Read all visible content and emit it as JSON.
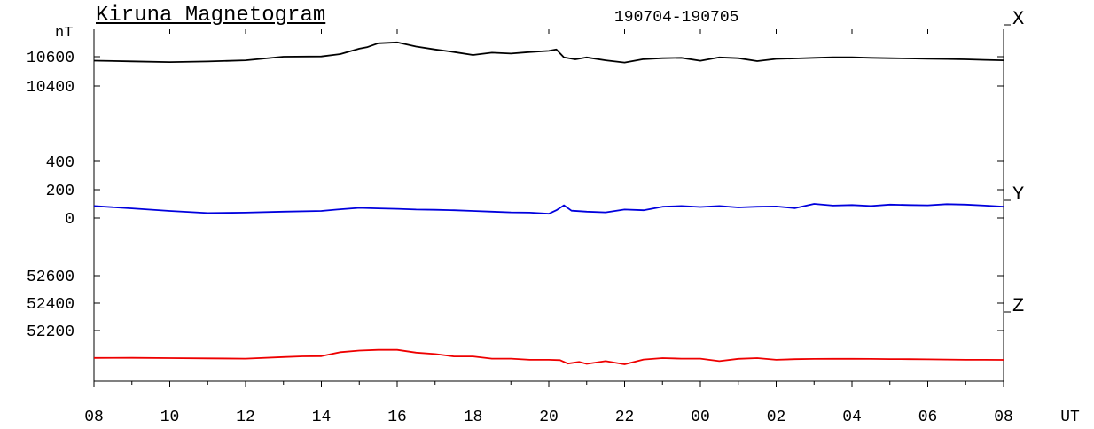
{
  "chart_data": {
    "type": "line",
    "title": "Kiruna Magnetogram",
    "date_range": "190704-190705",
    "unit_label": "nT",
    "x_unit_label": "UT",
    "x_tick_labels": [
      "08",
      "10",
      "12",
      "14",
      "16",
      "18",
      "20",
      "22",
      "00",
      "02",
      "04",
      "06",
      "08"
    ],
    "x_range_hours": [
      0,
      24
    ],
    "grid": false,
    "series": [
      {
        "name": "X",
        "color": "#000000",
        "y_ticks": [
          10400,
          10600
        ],
        "x": [
          0,
          1,
          2,
          3,
          4,
          5,
          6,
          6.5,
          7,
          7.2,
          7.5,
          8,
          8.5,
          9,
          9.5,
          10,
          10.5,
          11,
          11.5,
          12,
          12.2,
          12.4,
          12.7,
          13,
          13.5,
          14,
          14.5,
          15,
          15.5,
          16,
          16.5,
          17,
          17.5,
          18,
          18.5,
          19,
          19.5,
          20,
          20.5,
          21,
          21.5,
          22,
          22.5,
          23,
          23.5,
          24
        ],
        "values": [
          10573,
          10568,
          10563,
          10567,
          10575,
          10600,
          10602,
          10618,
          10655,
          10665,
          10692,
          10698,
          10670,
          10650,
          10632,
          10612,
          10628,
          10622,
          10632,
          10640,
          10650,
          10595,
          10582,
          10595,
          10575,
          10560,
          10583,
          10590,
          10592,
          10572,
          10595,
          10590,
          10570,
          10585,
          10588,
          10592,
          10596,
          10596,
          10592,
          10590,
          10588,
          10586,
          10584,
          10582,
          10578,
          10575
        ]
      },
      {
        "name": "Y",
        "color": "#0000dd",
        "y_ticks": [
          0,
          200,
          400
        ],
        "x": [
          0,
          1,
          2,
          3,
          4,
          5,
          6,
          6.5,
          7,
          7.5,
          8,
          8.5,
          9,
          9.5,
          10,
          10.5,
          11,
          11.5,
          12,
          12.2,
          12.4,
          12.6,
          13,
          13.5,
          14,
          14.5,
          15,
          15.5,
          16,
          16.5,
          17,
          17.5,
          18,
          18.5,
          19,
          19.5,
          20,
          20.5,
          21,
          21.5,
          22,
          22.5,
          23,
          23.5,
          24
        ],
        "values": [
          85,
          68,
          50,
          35,
          38,
          45,
          50,
          62,
          72,
          68,
          65,
          60,
          58,
          55,
          50,
          45,
          40,
          38,
          30,
          55,
          90,
          52,
          45,
          40,
          60,
          55,
          80,
          85,
          78,
          85,
          75,
          80,
          82,
          70,
          100,
          88,
          92,
          85,
          95,
          92,
          90,
          98,
          95,
          88,
          80
        ]
      },
      {
        "name": "Z",
        "color": "#ee0000",
        "y_ticks": [
          52200,
          52400,
          52600
        ],
        "x": [
          0,
          1,
          2,
          3,
          4,
          5,
          5.5,
          6,
          6.5,
          7,
          7.5,
          8,
          8.5,
          9,
          9.5,
          10,
          10.5,
          11,
          11.5,
          12,
          12.3,
          12.5,
          12.8,
          13,
          13.5,
          14,
          14.5,
          15,
          15.5,
          16,
          16.5,
          17,
          17.5,
          18,
          18.5,
          19,
          19.5,
          20,
          20.5,
          21,
          21.5,
          22,
          22.5,
          23,
          23.5,
          24
        ],
        "values": [
          52001,
          52002,
          52000,
          51998,
          51996,
          52008,
          52013,
          52014,
          52043,
          52055,
          52060,
          52060,
          52040,
          52030,
          52012,
          52012,
          51996,
          51996,
          51988,
          51988,
          51985,
          51960,
          51972,
          51958,
          51978,
          51955,
          51990,
          52000,
          51996,
          51996,
          51978,
          51995,
          52000,
          51988,
          51992,
          51994,
          51995,
          51995,
          51994,
          51993,
          51992,
          51991,
          51990,
          51988,
          51988,
          51987
        ]
      }
    ],
    "colors": {
      "x_line": "#000000",
      "y_line": "#0000dd",
      "z_line": "#ee0000",
      "axis": "#000000"
    }
  }
}
